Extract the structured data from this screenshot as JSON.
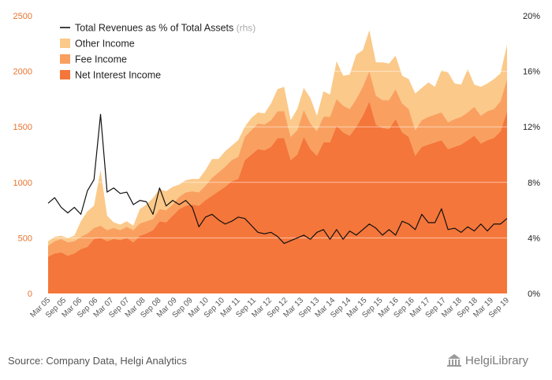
{
  "chart_data": {
    "type": "area",
    "x_tick_labels": [
      "Mar 05",
      "Sep 05",
      "Mar 06",
      "Sep 06",
      "Mar 07",
      "Sep 07",
      "Mar 08",
      "Sep 08",
      "Mar 09",
      "Sep 09",
      "Mar 10",
      "Sep 10",
      "Mar 11",
      "Sep 11",
      "Mar 12",
      "Sep 12",
      "Mar 13",
      "Sep 13",
      "Mar 14",
      "Sep 14",
      "Mar 15",
      "Sep 15",
      "Mar 16",
      "Sep 16",
      "Mar 17",
      "Sep 17",
      "Mar 18",
      "Sep 18",
      "Mar 19",
      "Sep 19"
    ],
    "y_left": {
      "ylim": [
        0,
        2500
      ],
      "ticks": [
        "0",
        "500",
        "1000",
        "1500",
        "2000",
        "2500"
      ]
    },
    "y_right": {
      "ylim": [
        0,
        20
      ],
      "ticks": [
        "0%",
        "4%",
        "8%",
        "12%",
        "16%",
        "20%"
      ]
    },
    "legend": [
      {
        "label": "Total Revenues as % of Total Assets",
        "note": "(rhs)",
        "kind": "line",
        "color": "#111111"
      },
      {
        "label": "Other Income",
        "kind": "area",
        "color": "#fbc98a"
      },
      {
        "label": "Fee Income",
        "kind": "area",
        "color": "#f9a060"
      },
      {
        "label": "Net Interest Income",
        "kind": "area",
        "color": "#f5763a"
      }
    ],
    "series": [
      {
        "name": "Net Interest Income",
        "axis": "left",
        "values": [
          330,
          360,
          370,
          340,
          360,
          400,
          420,
          490,
          500,
          470,
          490,
          480,
          500,
          460,
          520,
          540,
          570,
          650,
          640,
          700,
          760,
          790,
          800,
          790,
          840,
          880,
          920,
          960,
          1010,
          1030,
          1200,
          1250,
          1300,
          1290,
          1320,
          1400,
          1400,
          1200,
          1250,
          1410,
          1300,
          1240,
          1360,
          1360,
          1510,
          1450,
          1420,
          1500,
          1600,
          1730,
          1520,
          1490,
          1480,
          1570,
          1450,
          1410,
          1240,
          1320,
          1340,
          1360,
          1380,
          1300,
          1320,
          1340,
          1380,
          1420,
          1350,
          1380,
          1400,
          1460,
          1640
        ]
      },
      {
        "name": "Fee Income",
        "axis": "left",
        "values": [
          100,
          110,
          120,
          120,
          110,
          110,
          120,
          100,
          110,
          100,
          100,
          90,
          100,
          110,
          110,
          110,
          100,
          110,
          110,
          100,
          110,
          120,
          120,
          120,
          130,
          160,
          170,
          180,
          190,
          200,
          210,
          220,
          230,
          230,
          240,
          240,
          240,
          210,
          220,
          240,
          230,
          220,
          230,
          230,
          240,
          240,
          240,
          250,
          260,
          270,
          260,
          250,
          260,
          270,
          260,
          250,
          230,
          240,
          250,
          250,
          250,
          240,
          250,
          250,
          250,
          260,
          250,
          260,
          260,
          270,
          290
        ]
      },
      {
        "name": "Other Income",
        "axis": "left",
        "values": [
          40,
          40,
          30,
          40,
          50,
          140,
          200,
          200,
          500,
          130,
          50,
          50,
          50,
          40,
          130,
          150,
          190,
          180,
          170,
          160,
          110,
          110,
          110,
          120,
          140,
          170,
          120,
          140,
          130,
          150,
          90,
          110,
          100,
          100,
          150,
          200,
          220,
          150,
          190,
          200,
          230,
          140,
          230,
          200,
          340,
          270,
          310,
          400,
          330,
          370,
          300,
          340,
          330,
          300,
          250,
          270,
          330,
          290,
          310,
          250,
          380,
          450,
          320,
          290,
          390,
          200,
          260,
          250,
          270,
          250,
          310
        ]
      },
      {
        "name": "Total Revenues as % of Total Assets",
        "axis": "right",
        "values": [
          6.5,
          6.9,
          6.2,
          5.8,
          6.2,
          5.7,
          7.4,
          8.2,
          12.9,
          7.3,
          7.6,
          7.2,
          7.3,
          6.4,
          6.7,
          6.6,
          5.7,
          7.6,
          6.3,
          6.7,
          6.4,
          6.7,
          6.2,
          4.8,
          5.5,
          5.7,
          5.3,
          5.0,
          5.2,
          5.5,
          5.4,
          4.9,
          4.4,
          4.3,
          4.4,
          4.1,
          3.6,
          3.8,
          4.0,
          4.2,
          3.9,
          4.4,
          4.6,
          3.9,
          4.6,
          3.9,
          4.5,
          4.2,
          4.6,
          5.0,
          4.7,
          4.2,
          4.6,
          4.2,
          5.2,
          5.0,
          4.6,
          5.7,
          5.1,
          5.1,
          6.1,
          4.6,
          4.7,
          4.4,
          4.8,
          4.5,
          5.0,
          4.5,
          5.0,
          5.0,
          5.4
        ]
      }
    ]
  },
  "footer": {
    "source_text": "Source: Company Data, Helgi Analytics",
    "logo_text": "HelgiLibrary"
  }
}
